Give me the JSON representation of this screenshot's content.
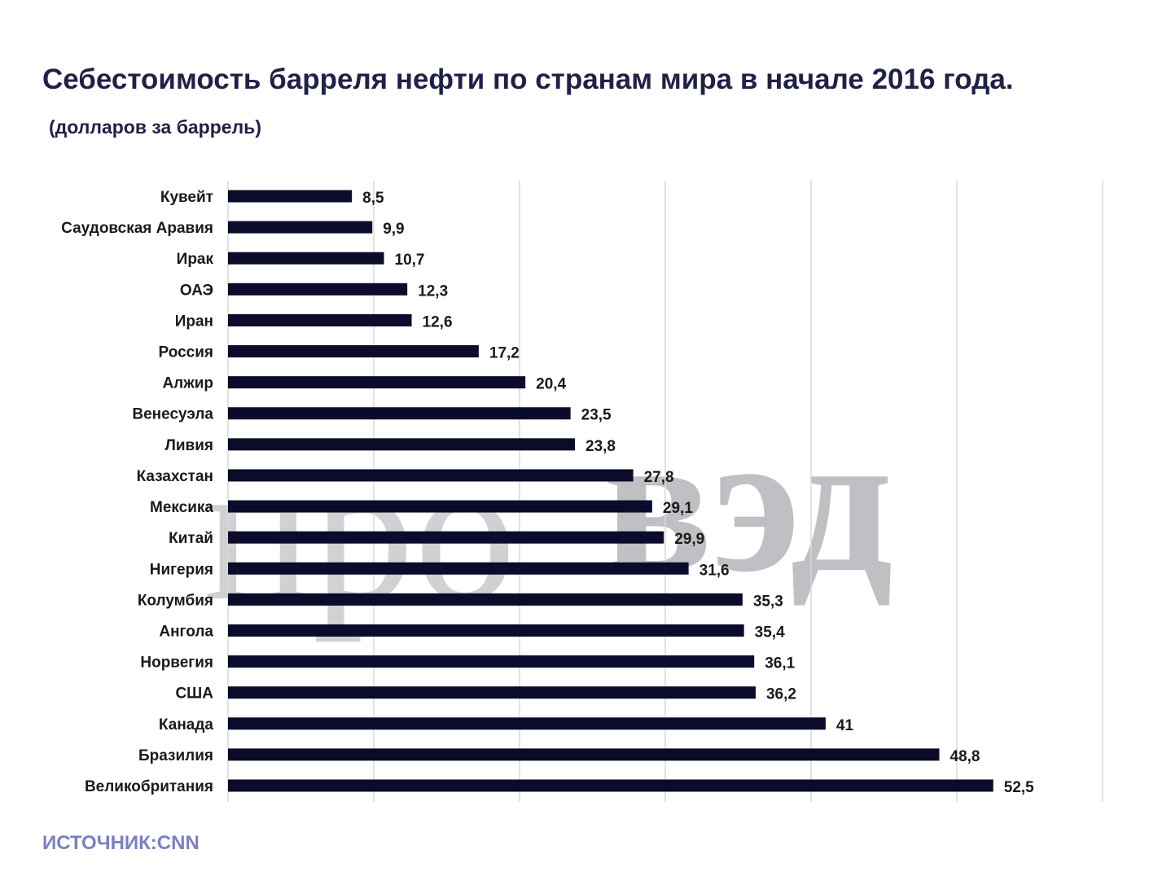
{
  "page": {
    "title": "Себестоимость барреля нефти по странам мира в начале 2016 года.",
    "subtitle": "(долларов за баррель)",
    "source": "ИСТОЧНИК:CNN"
  },
  "watermark": {
    "light": "про",
    "bold": "вэд"
  },
  "colors": {
    "bar": "#0b0b2b",
    "title": "#1f2147",
    "source": "#7b7fc4",
    "grid": "#d9d9d9"
  },
  "chart_data": {
    "type": "bar",
    "orientation": "horizontal",
    "title": "Себестоимость барреля нефти по странам мира в начале 2016 года.",
    "subtitle": "(долларов за баррель)",
    "xlabel": "",
    "ylabel": "",
    "xlim": [
      0,
      60
    ],
    "grid": true,
    "legend": "none",
    "categories": [
      "Кувейт",
      "Саудовская Аравия",
      "Ирак",
      "ОАЭ",
      "Иран",
      "Россия",
      "Алжир",
      "Венесуэла",
      "Ливия",
      "Казахстан",
      "Мексика",
      "Китай",
      "Нигерия",
      "Колумбия",
      "Ангола",
      "Норвегия",
      "США",
      "Канада",
      "Бразилия",
      "Великобритания"
    ],
    "values": [
      8.5,
      9.9,
      10.7,
      12.3,
      12.6,
      17.2,
      20.4,
      23.5,
      23.8,
      27.8,
      29.1,
      29.9,
      31.6,
      35.3,
      35.4,
      36.1,
      36.2,
      41,
      48.8,
      52.5
    ],
    "value_labels": [
      "8,5",
      "9,9",
      "10,7",
      "12,3",
      "12,6",
      "17,2",
      "20,4",
      "23,5",
      "23,8",
      "27,8",
      "29,1",
      "29,9",
      "31,6",
      "35,3",
      "35,4",
      "36,1",
      "36,2",
      "41",
      "48,8",
      "52,5"
    ]
  }
}
